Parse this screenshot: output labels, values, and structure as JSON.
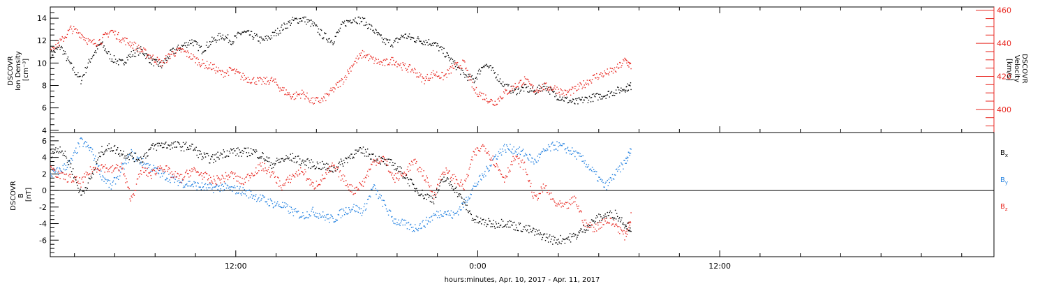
{
  "x_axis_title": "hours:minutes, Apr. 10, 2017 - Apr. 11, 2017",
  "chart_data": [
    {
      "type": "scatter",
      "panel": "top",
      "ylabel_left": [
        "DSCOVR",
        "Ion Density",
        "[cm⁻³]"
      ],
      "ylabel_right": [
        "DSCOVR",
        "Velocity",
        "[km/s]"
      ],
      "x_unit": "hours since 2017-04-10 00:00 UT",
      "xlim": [
        2.8,
        49.6
      ],
      "x_ticks": [
        12,
        24,
        36
      ],
      "x_tick_labels": [
        "12:00",
        "0:00",
        "12:00"
      ],
      "ylim_left": [
        3.8,
        15.0
      ],
      "y_ticks_left": [
        4,
        6,
        8,
        10,
        12,
        14
      ],
      "ylim_right": [
        386,
        462
      ],
      "y_ticks_right": [
        400,
        420,
        440,
        460
      ],
      "right_axis_color": "#e8261f",
      "series": [
        {
          "color": "#000000",
          "axis": "left",
          "x": [
            2.8,
            3.3,
            3.8,
            4.3,
            4.8,
            5.3,
            5.8,
            6.3,
            6.8,
            7.3,
            7.8,
            8.3,
            8.8,
            9.3,
            9.8,
            10.3,
            10.8,
            11.3,
            11.8,
            12.3,
            12.8,
            13.3,
            13.8,
            14.3,
            14.8,
            15.3,
            15.8,
            16.3,
            16.8,
            17.3,
            17.8,
            18.3,
            18.8,
            19.3,
            19.8,
            20.3,
            20.8,
            21.3,
            21.8,
            22.3,
            22.8,
            23.3,
            23.8,
            24.3,
            24.8,
            25.3,
            25.8,
            26.3,
            26.8,
            27.3,
            27.8,
            28.3,
            28.8,
            29.3,
            29.8,
            30.3,
            30.8,
            31.3,
            31.6
          ],
          "y": [
            10.8,
            11.5,
            9.8,
            8.5,
            10.5,
            11.8,
            10.5,
            10.0,
            10.8,
            11.2,
            10.2,
            9.8,
            11.0,
            11.5,
            12.0,
            11.2,
            12.0,
            12.5,
            12.0,
            12.8,
            12.5,
            12.0,
            12.5,
            13.2,
            13.8,
            14.0,
            13.5,
            12.5,
            12.0,
            13.5,
            14.0,
            13.8,
            13.0,
            12.0,
            11.8,
            12.5,
            12.2,
            12.0,
            11.8,
            11.0,
            10.0,
            9.0,
            8.5,
            10.0,
            9.2,
            8.0,
            7.5,
            7.8,
            7.5,
            8.0,
            7.2,
            6.8,
            6.5,
            6.8,
            7.0,
            7.2,
            7.5,
            7.8,
            8.0
          ]
        },
        {
          "color": "#e8261f",
          "axis": "right",
          "x": [
            2.8,
            3.3,
            3.8,
            4.3,
            4.8,
            5.3,
            5.8,
            6.3,
            6.8,
            7.3,
            7.8,
            8.3,
            8.8,
            9.3,
            9.8,
            10.3,
            10.8,
            11.3,
            11.8,
            12.3,
            12.8,
            13.3,
            13.8,
            14.3,
            14.8,
            15.3,
            15.8,
            16.3,
            16.8,
            17.3,
            17.8,
            18.3,
            18.8,
            19.3,
            19.8,
            20.3,
            20.8,
            21.3,
            21.8,
            22.3,
            22.8,
            23.3,
            23.8,
            24.3,
            24.8,
            25.3,
            25.8,
            26.3,
            26.8,
            27.3,
            27.8,
            28.3,
            28.8,
            29.3,
            29.8,
            30.3,
            30.8,
            31.3,
            31.6
          ],
          "y": [
            438,
            441,
            449,
            446,
            440,
            442,
            448,
            443,
            440,
            436,
            432,
            428,
            434,
            436,
            432,
            428,
            426,
            422,
            424,
            420,
            418,
            417,
            418,
            412,
            408,
            410,
            405,
            406,
            412,
            418,
            428,
            434,
            430,
            428,
            430,
            426,
            424,
            418,
            422,
            420,
            426,
            428,
            412,
            408,
            404,
            410,
            414,
            418,
            412,
            414,
            413,
            410,
            412,
            416,
            420,
            422,
            424,
            430,
            426
          ]
        }
      ]
    },
    {
      "type": "scatter",
      "panel": "bottom",
      "ylabel": [
        "DSCOVR",
        "B",
        "[nT]"
      ],
      "x_unit": "hours since 2017-04-10 00:00 UT",
      "xlim": [
        2.8,
        49.6
      ],
      "x_ticks": [
        12,
        24,
        36
      ],
      "x_tick_labels": [
        "12:00",
        "0:00",
        "12:00"
      ],
      "ylim": [
        -8.0,
        7.0
      ],
      "y_ticks": [
        -6,
        -4,
        -2,
        0,
        2,
        4,
        6
      ],
      "zero_line": true,
      "legend_placement": "right",
      "series": [
        {
          "name": "Bx",
          "name_main": "B",
          "name_sub": "x",
          "color": "#000000",
          "x": [
            2.8,
            3.3,
            3.8,
            4.3,
            4.8,
            5.3,
            5.8,
            6.3,
            6.8,
            7.3,
            7.8,
            8.3,
            8.8,
            9.3,
            9.8,
            10.3,
            10.8,
            11.3,
            11.8,
            12.3,
            12.8,
            13.3,
            13.8,
            14.3,
            14.8,
            15.3,
            15.8,
            16.3,
            16.8,
            17.3,
            17.8,
            18.3,
            18.8,
            19.3,
            19.8,
            20.3,
            20.8,
            21.3,
            21.8,
            22.3,
            22.8,
            23.3,
            23.8,
            24.3,
            24.8,
            25.3,
            25.8,
            26.3,
            26.8,
            27.3,
            27.8,
            28.3,
            28.8,
            29.3,
            29.8,
            30.3,
            30.8,
            31.3,
            31.6
          ],
          "y": [
            4.5,
            5.2,
            3.0,
            -0.5,
            1.5,
            4.8,
            5.3,
            4.6,
            4.2,
            3.8,
            5.2,
            5.6,
            5.5,
            5.4,
            5.3,
            4.2,
            3.8,
            4.5,
            4.8,
            4.6,
            4.8,
            4.2,
            3.2,
            3.8,
            4.0,
            3.5,
            3.2,
            3.0,
            2.6,
            3.5,
            4.5,
            4.8,
            4.2,
            3.5,
            3.2,
            2.0,
            0.5,
            -0.5,
            -1.0,
            1.5,
            0.5,
            -1.5,
            -3.5,
            -3.8,
            -4.0,
            -3.8,
            -4.2,
            -4.5,
            -5.0,
            -5.5,
            -6.0,
            -5.8,
            -5.5,
            -4.5,
            -3.5,
            -3.0,
            -2.8,
            -4.0,
            -4.5
          ]
        },
        {
          "name": "By",
          "name_main": "B",
          "name_sub": "y",
          "color": "#1f7fe0",
          "x": [
            2.8,
            3.3,
            3.8,
            4.3,
            4.8,
            5.3,
            5.8,
            6.3,
            6.8,
            7.3,
            7.8,
            8.3,
            8.8,
            9.3,
            9.8,
            10.3,
            10.8,
            11.3,
            11.8,
            12.3,
            12.8,
            13.3,
            13.8,
            14.3,
            14.8,
            15.3,
            15.8,
            16.3,
            16.8,
            17.3,
            17.8,
            18.3,
            18.8,
            19.3,
            19.8,
            20.3,
            20.8,
            21.3,
            21.8,
            22.3,
            22.8,
            23.3,
            23.8,
            24.3,
            24.8,
            25.3,
            25.8,
            26.3,
            26.8,
            27.3,
            27.8,
            28.3,
            28.8,
            29.3,
            29.8,
            30.3,
            30.8,
            31.3,
            31.6
          ],
          "y": [
            2.0,
            2.5,
            3.5,
            6.0,
            5.0,
            2.0,
            0.5,
            2.5,
            4.5,
            3.5,
            2.8,
            2.0,
            1.5,
            1.0,
            0.8,
            0.5,
            0.3,
            0.5,
            0.2,
            0.0,
            -0.5,
            -1.0,
            -1.5,
            -1.8,
            -2.5,
            -3.0,
            -2.5,
            -3.0,
            -3.5,
            -2.5,
            -2.0,
            -2.5,
            0.5,
            -1.5,
            -3.5,
            -4.0,
            -4.5,
            -4.0,
            -3.0,
            -2.5,
            -3.0,
            -1.5,
            0.5,
            2.0,
            4.0,
            5.2,
            5.0,
            4.5,
            3.5,
            4.8,
            5.5,
            5.2,
            4.5,
            3.5,
            2.0,
            0.5,
            2.0,
            3.5,
            5.0
          ]
        },
        {
          "name": "Bz",
          "name_main": "B",
          "name_sub": "z",
          "color": "#e8261f",
          "x": [
            2.8,
            3.3,
            3.8,
            4.3,
            4.8,
            5.3,
            5.8,
            6.3,
            6.8,
            7.3,
            7.8,
            8.3,
            8.8,
            9.3,
            9.8,
            10.3,
            10.8,
            11.3,
            11.8,
            12.3,
            12.8,
            13.3,
            13.8,
            14.3,
            14.8,
            15.3,
            15.8,
            16.3,
            16.8,
            17.3,
            17.8,
            18.3,
            18.8,
            19.3,
            19.8,
            20.3,
            20.8,
            21.3,
            21.8,
            22.3,
            22.8,
            23.3,
            23.8,
            24.3,
            24.8,
            25.3,
            25.8,
            26.3,
            26.8,
            27.3,
            27.8,
            28.3,
            28.8,
            29.3,
            29.8,
            30.3,
            30.8,
            31.3,
            31.6
          ],
          "y": [
            2.5,
            1.8,
            1.5,
            1.0,
            2.5,
            3.0,
            2.5,
            3.0,
            -1.0,
            2.5,
            2.0,
            3.0,
            2.0,
            1.5,
            2.5,
            2.0,
            1.2,
            1.5,
            2.0,
            1.0,
            2.2,
            3.0,
            2.0,
            0.5,
            1.8,
            2.5,
            0.5,
            1.5,
            3.0,
            1.5,
            0.0,
            1.0,
            3.5,
            4.0,
            1.5,
            2.0,
            3.5,
            2.0,
            -0.5,
            2.5,
            1.5,
            0.5,
            4.5,
            5.5,
            3.5,
            1.5,
            4.0,
            3.0,
            -1.0,
            0.5,
            -1.5,
            -2.0,
            -1.0,
            -4.0,
            -4.5,
            -3.5,
            -4.0,
            -5.5,
            -3.0
          ]
        }
      ]
    }
  ]
}
